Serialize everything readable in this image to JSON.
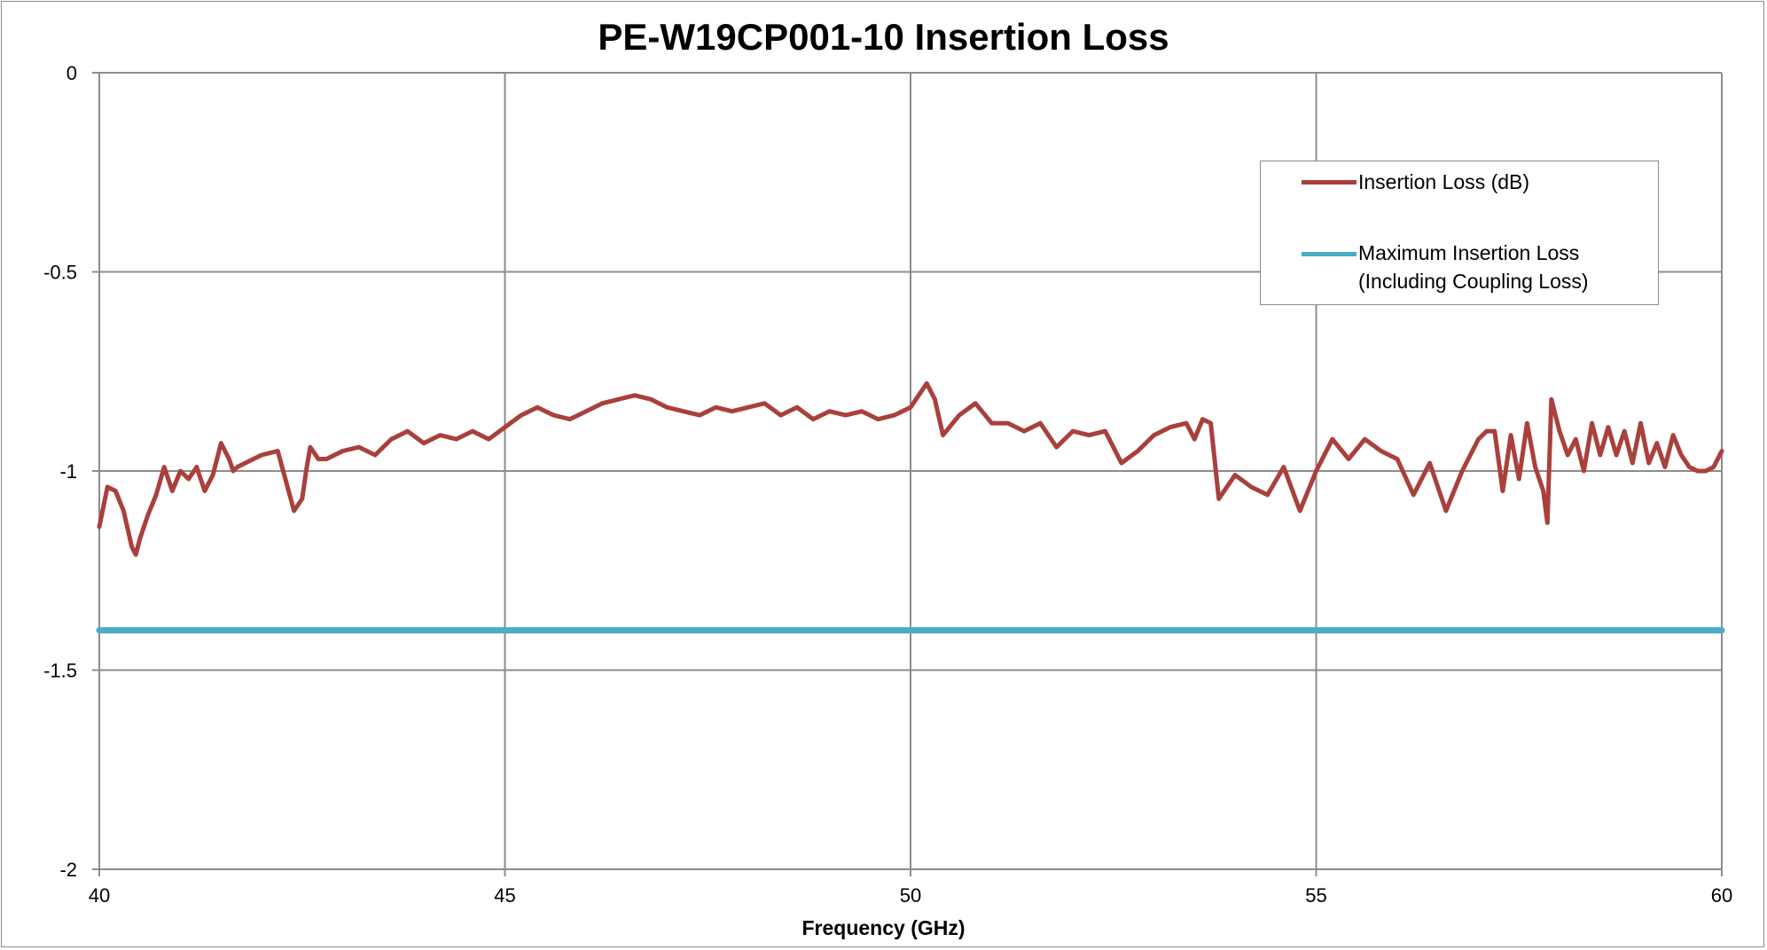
{
  "chart_data": {
    "type": "line",
    "title": "PE-W19CP001-10 Insertion Loss",
    "xlabel": "Frequency (GHz)",
    "ylabel": "",
    "xlim": [
      40,
      60
    ],
    "ylim": [
      -2,
      0
    ],
    "x_ticks": [
      "40",
      "45",
      "50",
      "55",
      "60"
    ],
    "y_ticks": [
      "0",
      "-0.5",
      "-1",
      "-1.5",
      "-2"
    ],
    "x_tick_values": [
      40,
      45,
      50,
      55,
      60
    ],
    "y_tick_values": [
      0,
      -0.5,
      -1,
      -1.5,
      -2
    ],
    "grid": true,
    "legend_position": "top-right",
    "series": [
      {
        "name": "Insertion Loss (dB)",
        "color": "#a9403c",
        "x": [
          40.0,
          40.1,
          40.2,
          40.3,
          40.4,
          40.45,
          40.5,
          40.6,
          40.7,
          40.8,
          40.9,
          41.0,
          41.1,
          41.2,
          41.3,
          41.4,
          41.5,
          41.6,
          41.65,
          41.7,
          41.8,
          41.9,
          42.0,
          42.2,
          42.4,
          42.5,
          42.55,
          42.6,
          42.7,
          42.8,
          43.0,
          43.2,
          43.4,
          43.6,
          43.8,
          44.0,
          44.2,
          44.4,
          44.6,
          44.8,
          45.0,
          45.2,
          45.4,
          45.6,
          45.8,
          46.0,
          46.2,
          46.4,
          46.6,
          46.8,
          47.0,
          47.2,
          47.4,
          47.6,
          47.8,
          48.0,
          48.2,
          48.4,
          48.6,
          48.8,
          49.0,
          49.2,
          49.4,
          49.6,
          49.8,
          50.0,
          50.1,
          50.2,
          50.3,
          50.4,
          50.6,
          50.8,
          51.0,
          51.2,
          51.4,
          51.6,
          51.8,
          52.0,
          52.2,
          52.4,
          52.6,
          52.8,
          53.0,
          53.2,
          53.4,
          53.5,
          53.6,
          53.7,
          53.8,
          54.0,
          54.2,
          54.4,
          54.6,
          54.8,
          55.0,
          55.2,
          55.4,
          55.6,
          55.8,
          56.0,
          56.2,
          56.4,
          56.6,
          56.8,
          57.0,
          57.1,
          57.2,
          57.3,
          57.4,
          57.5,
          57.6,
          57.7,
          57.8,
          57.85,
          57.9,
          58.0,
          58.1,
          58.2,
          58.3,
          58.4,
          58.5,
          58.6,
          58.7,
          58.8,
          58.9,
          59.0,
          59.1,
          59.2,
          59.3,
          59.4,
          59.5,
          59.6,
          59.7,
          59.8,
          59.9,
          60.0
        ],
        "values": [
          -1.14,
          -1.04,
          -1.05,
          -1.1,
          -1.19,
          -1.21,
          -1.17,
          -1.11,
          -1.06,
          -0.99,
          -1.05,
          -1.0,
          -1.02,
          -0.99,
          -1.05,
          -1.01,
          -0.93,
          -0.97,
          -1.0,
          -0.99,
          -0.98,
          -0.97,
          -0.96,
          -0.95,
          -1.1,
          -1.07,
          -1.0,
          -0.94,
          -0.97,
          -0.97,
          -0.95,
          -0.94,
          -0.96,
          -0.92,
          -0.9,
          -0.93,
          -0.91,
          -0.92,
          -0.9,
          -0.92,
          -0.89,
          -0.86,
          -0.84,
          -0.86,
          -0.87,
          -0.85,
          -0.83,
          -0.82,
          -0.81,
          -0.82,
          -0.84,
          -0.85,
          -0.86,
          -0.84,
          -0.85,
          -0.84,
          -0.83,
          -0.86,
          -0.84,
          -0.87,
          -0.85,
          -0.86,
          -0.85,
          -0.87,
          -0.86,
          -0.84,
          -0.81,
          -0.78,
          -0.82,
          -0.91,
          -0.86,
          -0.83,
          -0.88,
          -0.88,
          -0.9,
          -0.88,
          -0.94,
          -0.9,
          -0.91,
          -0.9,
          -0.98,
          -0.95,
          -0.91,
          -0.89,
          -0.88,
          -0.92,
          -0.87,
          -0.88,
          -1.07,
          -1.01,
          -1.04,
          -1.06,
          -0.99,
          -1.1,
          -1.0,
          -0.92,
          -0.97,
          -0.92,
          -0.95,
          -0.97,
          -1.06,
          -0.98,
          -1.1,
          -1.0,
          -0.92,
          -0.9,
          -0.9,
          -1.05,
          -0.91,
          -1.02,
          -0.88,
          -0.99,
          -1.05,
          -1.13,
          -0.82,
          -0.9,
          -0.96,
          -0.92,
          -1.0,
          -0.88,
          -0.96,
          -0.89,
          -0.96,
          -0.9,
          -0.98,
          -0.88,
          -0.98,
          -0.93,
          -0.99,
          -0.91,
          -0.96,
          -0.99,
          -1.0,
          -1.0,
          -0.99,
          -0.95
        ]
      },
      {
        "name": "Maximum Insertion Loss\n(Including Coupling Loss)",
        "color": "#4aacc6",
        "x": [
          40,
          60
        ],
        "values": [
          -1.4,
          -1.4
        ]
      }
    ]
  }
}
